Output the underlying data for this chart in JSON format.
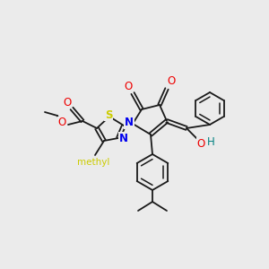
{
  "bg_color": "#ebebeb",
  "bond_color": "#1a1a1a",
  "atom_colors": {
    "N": "#0000ee",
    "O": "#ee0000",
    "S": "#cccc00",
    "H": "#008080",
    "N_thiazole": "#0000ee"
  },
  "figsize": [
    3.0,
    3.0
  ],
  "dpi": 100
}
